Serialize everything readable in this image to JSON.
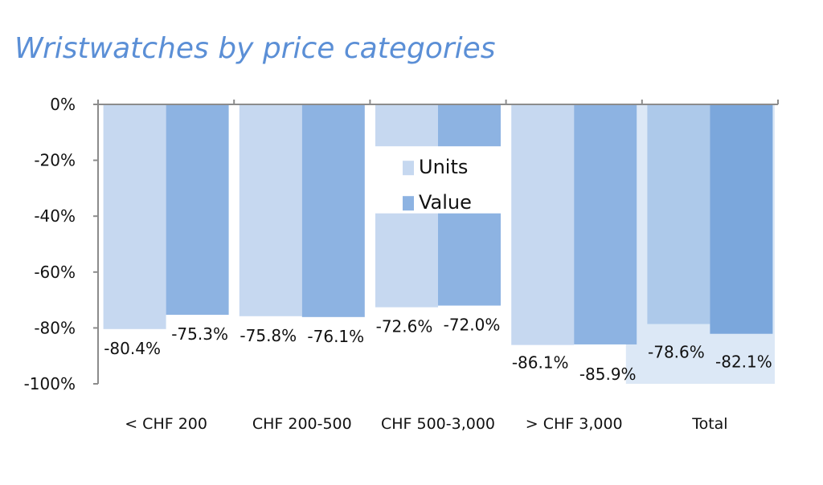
{
  "colors": {
    "title": "#5b8fd6",
    "units": "#c6d8f0",
    "value": "#8db3e2",
    "units_total": "#adc9ea",
    "value_total": "#7ba7dc",
    "total_bg": "#dce8f6",
    "axis": "#8c8c8c"
  },
  "chart_data": {
    "type": "bar",
    "title": "Wristwatches by price categories",
    "xlabel": "",
    "ylabel": "",
    "categories": [
      "< CHF 200",
      "CHF 200-500",
      "CHF 500-3,000",
      "> CHF 3,000",
      "Total"
    ],
    "series": [
      {
        "name": "Units",
        "values": [
          -80.4,
          -75.8,
          -72.6,
          -86.1,
          -78.6
        ],
        "labels": [
          "-80.4%",
          "-75.8%",
          "-72.6%",
          "-86.1%",
          "-78.6%"
        ]
      },
      {
        "name": "Value",
        "values": [
          -75.3,
          -76.1,
          -72.0,
          -85.9,
          -82.1
        ],
        "labels": [
          "-75.3%",
          "-76.1%",
          "-72.0%",
          "-85.9%",
          "-82.1%"
        ]
      }
    ],
    "ylim": [
      -100,
      0
    ],
    "y_ticks": [
      "0%",
      "-20%",
      "-40%",
      "-60%",
      "-80%",
      "-100%"
    ],
    "y_tick_values": [
      0,
      -20,
      -40,
      -60,
      -80,
      -100
    ],
    "legend_position": "inside, within third category",
    "grid": false
  }
}
